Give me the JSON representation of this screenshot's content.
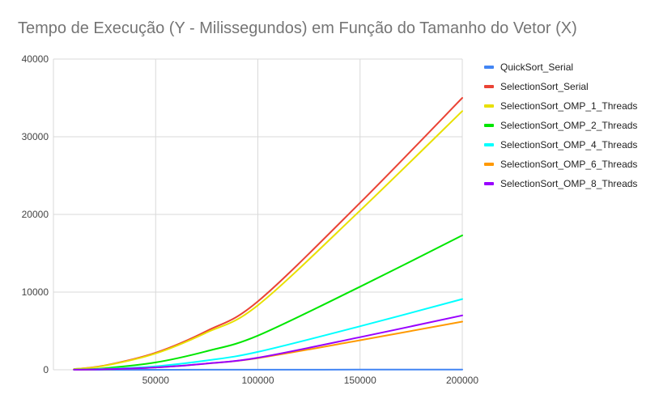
{
  "chart_data": {
    "type": "line",
    "title": "Tempo de Execução (Y - Milissegundos) em Função do Tamanho do Vetor (X)",
    "xlabel": "",
    "ylabel": "",
    "xlim": [
      0,
      200000
    ],
    "ylim": [
      0,
      40000
    ],
    "x_ticks": [
      50000,
      100000,
      150000,
      200000
    ],
    "x_tick_labels": [
      "50000",
      "100000",
      "150000",
      "200000"
    ],
    "y_ticks": [
      0,
      10000,
      20000,
      30000,
      40000
    ],
    "y_tick_labels": [
      "0",
      "10000",
      "20000",
      "30000",
      "40000"
    ],
    "grid": true,
    "legend_position": "right",
    "x": [
      10000,
      25000,
      50000,
      75000,
      100000,
      150000,
      200000
    ],
    "series": [
      {
        "name": "QuickSort_Serial",
        "color": "#4285f4",
        "values": [
          1,
          2,
          5,
          8,
          12,
          20,
          30
        ]
      },
      {
        "name": "SelectionSort_Serial",
        "color": "#ea4335",
        "values": [
          80,
          550,
          2200,
          5000,
          8800,
          21500,
          35000
        ]
      },
      {
        "name": "SelectionSort_OMP_1_Threads",
        "color": "#e8e000",
        "values": [
          80,
          520,
          2100,
          4800,
          8300,
          20500,
          33300
        ]
      },
      {
        "name": "SelectionSort_OMP_2_Threads",
        "color": "#00e600",
        "values": [
          30,
          200,
          950,
          2400,
          4400,
          10700,
          17300
        ]
      },
      {
        "name": "SelectionSort_OMP_4_Threads",
        "color": "#00ffff",
        "values": [
          15,
          100,
          450,
          1200,
          2300,
          5600,
          9100
        ]
      },
      {
        "name": "SelectionSort_OMP_6_Threads",
        "color": "#ff9900",
        "values": [
          10,
          70,
          300,
          800,
          1500,
          3800,
          6200
        ]
      },
      {
        "name": "SelectionSort_OMP_8_Threads",
        "color": "#9900ff",
        "values": [
          10,
          70,
          300,
          800,
          1550,
          4200,
          7000
        ]
      }
    ],
    "gridline_color": "#d9d9d9"
  }
}
